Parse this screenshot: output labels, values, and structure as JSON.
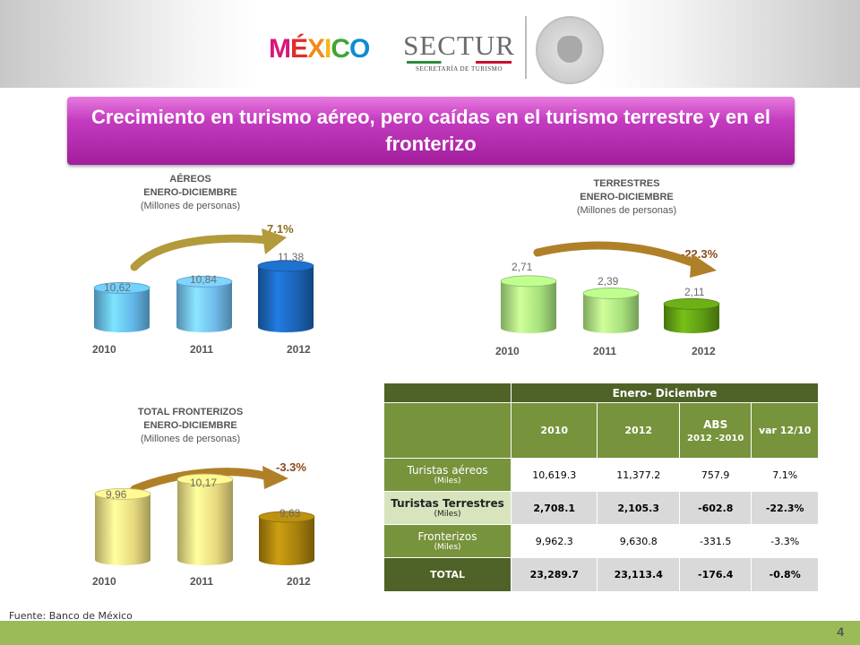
{
  "header": {
    "logo_mexico": [
      "M",
      "É",
      "X",
      "I",
      "C",
      "O"
    ],
    "logo_sectur": "SECTUR",
    "logo_sectur_sub": "SECRETARÍA DE TURISMO"
  },
  "title": "Crecimiento en turismo aéreo, pero caídas en el turismo terrestre y en el fronterizo",
  "charts": {
    "aereos": {
      "title": "AÉREOS",
      "period": "ENERO-DICIEMBRE",
      "units": "(Millones de personas)",
      "change": "7.1%"
    },
    "terrestres": {
      "title": "TERRESTRES",
      "period": "ENERO-DICIEMBRE",
      "units": "(Millones de personas)",
      "change": "-22.3%"
    },
    "fronterizos": {
      "title": "TOTAL FRONTERIZOS",
      "period": "ENERO-DICIEMBRE",
      "units": "(Millones de personas)",
      "change": "-3.3%"
    }
  },
  "chart_data": [
    {
      "type": "bar",
      "title": "AÉREOS ENERO-DICIEMBRE (Millones de personas)",
      "categories": [
        "2010",
        "2011",
        "2012"
      ],
      "values": [
        10.62,
        10.84,
        11.38
      ],
      "labels": [
        "10,62",
        "10,84",
        "11,38"
      ],
      "annotation": "7.1%"
    },
    {
      "type": "bar",
      "title": "TERRESTRES ENERO-DICIEMBRE (Millones de personas)",
      "categories": [
        "2010",
        "2011",
        "2012"
      ],
      "values": [
        2.71,
        2.39,
        2.11
      ],
      "labels": [
        "2,71",
        "2,39",
        "2,11"
      ],
      "annotation": "-22.3%"
    },
    {
      "type": "bar",
      "title": "TOTAL FRONTERIZOS ENERO-DICIEMBRE (Millones de personas)",
      "categories": [
        "2010",
        "2011",
        "2012"
      ],
      "values": [
        9.96,
        10.17,
        9.63
      ],
      "labels": [
        "9,96",
        "10,17",
        "9,63"
      ],
      "annotation": "-3.3%"
    }
  ],
  "colors": {
    "aereos": [
      "#63b7e8",
      "#6fb9ea",
      "#1a63b5"
    ],
    "terrestres": [
      "#a6e17c",
      "#a6e17c",
      "#5f9a13"
    ],
    "fronterizos": [
      "#e7d97e",
      "#e7d97e",
      "#a57f0d"
    ]
  },
  "table": {
    "header_group": "Enero- Diciembre",
    "col_2010": "2010",
    "col_2012": "2012",
    "col_abs": "ABS",
    "col_abs_sub": "2012 -2010",
    "col_var": "var 12/10",
    "rows": [
      {
        "label": "Turistas aéreos",
        "unit": "(Miles)",
        "v2010": "10,619.3",
        "v2012": "11,377.2",
        "abs": "757.9",
        "var": "7.1%"
      },
      {
        "label": "Turistas Terrestres",
        "unit": "(Miles)",
        "v2010": "2,708.1",
        "v2012": "2,105.3",
        "abs": "-602.8",
        "var": "-22.3%"
      },
      {
        "label": "Fronterizos",
        "unit": "(Miles)",
        "v2010": "9,962.3",
        "v2012": "9,630.8",
        "abs": "-331.5",
        "var": "-3.3%"
      }
    ],
    "total": {
      "label": "TOTAL",
      "v2010": "23,289.7",
      "v2012": "23,113.4",
      "abs": "-176.4",
      "var": "-0.8%"
    }
  },
  "source": "Fuente: Banco de México",
  "page_number": "4"
}
